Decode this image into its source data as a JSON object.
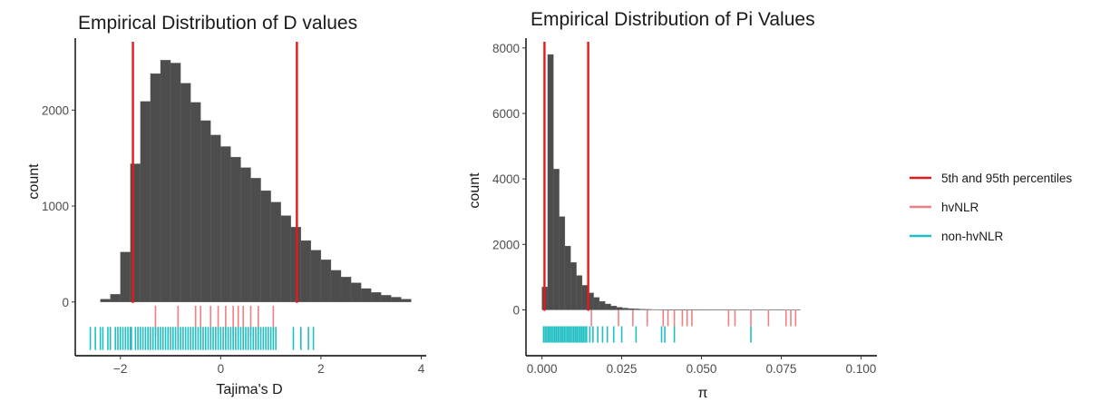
{
  "colors": {
    "bar": "#4d4d4d",
    "percentile": "#e31a1c",
    "hvNLR": "#f08080",
    "non_hvNLR": "#1fbfc3",
    "axis": "#000000"
  },
  "legend": {
    "position": "right",
    "items": [
      {
        "label": "5th and 95th percentiles",
        "color_key": "percentile"
      },
      {
        "label": "hvNLR",
        "color_key": "hvNLR"
      },
      {
        "label": "non-hvNLR",
        "color_key": "non_hvNLR"
      }
    ]
  },
  "chart_data": [
    {
      "type": "histogram",
      "title": "Empirical Distribution of D values",
      "xlabel": "Tajima's D",
      "ylabel": "count",
      "xlim": [
        -2.9,
        4.1
      ],
      "ylim": [
        -560,
        2750
      ],
      "xticks": [
        -2,
        0,
        2,
        4
      ],
      "xtick_labels": [
        "−2",
        "0",
        "2",
        "4"
      ],
      "yticks": [
        0,
        1000,
        2000
      ],
      "ytick_labels": [
        "0",
        "1000",
        "2000"
      ],
      "grid": false,
      "bin_start": -2.4,
      "bin_width": 0.2,
      "counts": [
        30,
        80,
        520,
        1440,
        2090,
        2380,
        2520,
        2490,
        2280,
        2080,
        1890,
        1740,
        1620,
        1510,
        1400,
        1290,
        1160,
        1040,
        900,
        780,
        640,
        540,
        440,
        330,
        260,
        200,
        140,
        100,
        70,
        50,
        30
      ],
      "percentile_lines": [
        -1.75,
        1.52
      ],
      "rug_hvNLR": {
        "y_range": [
          -350,
          -40
        ],
        "x": [
          -1.3,
          -0.85,
          -0.5,
          -0.4,
          -0.2,
          -0.05,
          0.1,
          0.25,
          0.35,
          0.45,
          0.6,
          0.75,
          1.05
        ]
      },
      "rug_non_hvNLR": {
        "y_range": [
          -500,
          -260
        ],
        "x": [
          -2.6,
          -2.5,
          -2.4,
          -2.35,
          -2.25,
          -2.2,
          -2.1,
          -2.05,
          -2.0,
          -1.95,
          -1.9,
          -1.85,
          -1.8,
          -1.78,
          -1.7,
          -1.65,
          -1.6,
          -1.55,
          -1.5,
          -1.45,
          -1.4,
          -1.35,
          -1.3,
          -1.25,
          -1.2,
          -1.15,
          -1.1,
          -1.05,
          -1.0,
          -0.95,
          -0.9,
          -0.85,
          -0.8,
          -0.75,
          -0.7,
          -0.65,
          -0.6,
          -0.55,
          -0.5,
          -0.45,
          -0.4,
          -0.35,
          -0.3,
          -0.25,
          -0.2,
          -0.15,
          -0.1,
          -0.05,
          0.0,
          0.05,
          0.1,
          0.15,
          0.2,
          0.25,
          0.3,
          0.35,
          0.4,
          0.45,
          0.5,
          0.55,
          0.6,
          0.65,
          0.7,
          0.75,
          0.8,
          0.85,
          0.9,
          0.95,
          1.0,
          1.05,
          1.1,
          1.45,
          1.6,
          1.75,
          1.85
        ]
      }
    },
    {
      "type": "histogram",
      "title": "Empirical Distribution of Pi Values",
      "xlabel": "π",
      "ylabel": "count",
      "xlim": [
        -0.005,
        0.105
      ],
      "ylim": [
        -1400,
        8300
      ],
      "xticks": [
        0.0,
        0.025,
        0.05,
        0.075,
        0.1
      ],
      "xtick_labels": [
        "0.000",
        "0.025",
        "0.050",
        "0.075",
        "0.100"
      ],
      "yticks": [
        0,
        2000,
        4000,
        6000,
        8000
      ],
      "ytick_labels": [
        "0",
        "2000",
        "4000",
        "6000",
        "8000"
      ],
      "grid": false,
      "bin_start": 0.0,
      "bin_width": 0.0018,
      "counts": [
        700,
        7800,
        4300,
        2850,
        1950,
        1450,
        1050,
        750,
        520,
        380,
        260,
        180,
        120,
        80,
        55,
        40,
        30,
        22,
        16,
        12,
        10,
        8,
        7,
        6,
        5,
        4,
        4,
        3,
        3,
        2,
        2,
        2,
        2,
        2,
        1,
        1,
        1,
        1,
        1,
        1,
        1,
        1,
        1,
        1,
        1
      ],
      "percentile_lines": [
        0.0008,
        0.0145
      ],
      "rug_hvNLR": {
        "y_range": [
          -500,
          0
        ],
        "x": [
          0.0155,
          0.024,
          0.0285,
          0.033,
          0.038,
          0.0395,
          0.0415,
          0.044,
          0.0455,
          0.047,
          0.0585,
          0.0605,
          0.0655,
          0.071,
          0.0765,
          0.078,
          0.0795
        ]
      },
      "rug_non_hvNLR": {
        "y_range": [
          -1000,
          -500
        ],
        "x": [
          0.0005,
          0.001,
          0.0015,
          0.002,
          0.0025,
          0.003,
          0.0035,
          0.004,
          0.0045,
          0.005,
          0.0055,
          0.006,
          0.0065,
          0.007,
          0.0075,
          0.008,
          0.0085,
          0.009,
          0.0095,
          0.01,
          0.0105,
          0.011,
          0.0115,
          0.012,
          0.0125,
          0.013,
          0.0135,
          0.014,
          0.015,
          0.016,
          0.0175,
          0.019,
          0.0205,
          0.0225,
          0.025,
          0.0295,
          0.0375,
          0.0385,
          0.0415,
          0.0655
        ]
      }
    }
  ]
}
